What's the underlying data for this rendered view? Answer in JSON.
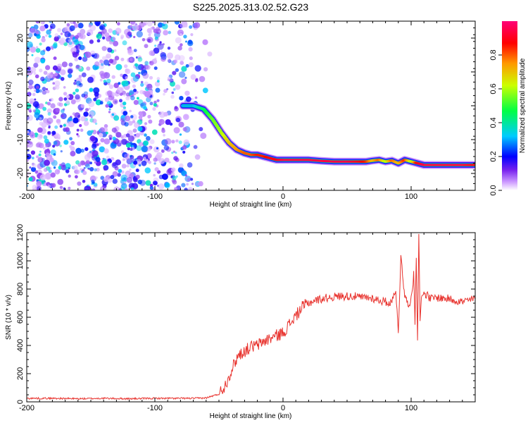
{
  "title": "S225.2025.313.02.52.G23",
  "chart_data": [
    {
      "type": "heatmap",
      "xlabel": "Height of straight line (km)",
      "ylabel": "Frequency (Hz)",
      "xlim": [
        -200,
        150
      ],
      "ylim": [
        -25,
        25
      ],
      "xticks": [
        -200,
        -100,
        0,
        100
      ],
      "yticks": [
        -20,
        -10,
        0,
        10,
        20
      ],
      "colorbar": {
        "label": "Normalized spectral amplitude",
        "range": [
          0,
          1
        ],
        "ticks": [
          0.0,
          0.2,
          0.4,
          0.6,
          0.8
        ],
        "colors": [
          "#ffffff",
          "#cc99ff",
          "#7722ee",
          "#0000ff",
          "#00ccff",
          "#00ff44",
          "#ccff00",
          "#ff9900",
          "#ff0000",
          "#ff0077"
        ]
      },
      "noise_region": {
        "x": [
          -200,
          -55
        ],
        "freq": [
          -25,
          25
        ],
        "amplitude_range": [
          0.0,
          0.35
        ]
      },
      "signal_track": {
        "x": [
          -78,
          -70,
          -62,
          -55,
          -48,
          -42,
          -36,
          -30,
          -25,
          -20,
          -15,
          -10,
          -5,
          0,
          10,
          20,
          30,
          40,
          50,
          60,
          65,
          70,
          75,
          80,
          85,
          90,
          95,
          100,
          105,
          110,
          120,
          130,
          140,
          150
        ],
        "freq": [
          0,
          0,
          -1,
          -4,
          -8,
          -11,
          -13,
          -14,
          -14.5,
          -14.5,
          -15,
          -15.5,
          -16,
          -16,
          -16,
          -16,
          -16.3,
          -16.5,
          -16.5,
          -16.5,
          -16.5,
          -16.2,
          -16,
          -16.5,
          -16.2,
          -17,
          -16,
          -16.5,
          -17,
          -17.5,
          -17.5,
          -17.5,
          -17.5,
          -17.5
        ],
        "amplitude": [
          0.3,
          0.3,
          0.45,
          0.55,
          0.6,
          0.7,
          0.75,
          0.8,
          0.8,
          0.85,
          0.85,
          0.9,
          0.9,
          0.95,
          0.95,
          0.95,
          0.95,
          0.95,
          0.95,
          0.9,
          0.85,
          0.7,
          0.8,
          0.6,
          0.8,
          0.7,
          0.85,
          0.6,
          0.9,
          0.95,
          0.95,
          0.95,
          0.95,
          0.9
        ]
      }
    },
    {
      "type": "line",
      "xlabel": "Height of straight line (km)",
      "ylabel": "SNR (10 * v/v)",
      "xlim": [
        -200,
        150
      ],
      "ylim": [
        0,
        1200
      ],
      "xticks": [
        -200,
        -100,
        0,
        100
      ],
      "yticks": [
        0,
        200,
        400,
        600,
        800,
        1000,
        1200
      ],
      "color": "#e8332e",
      "x": [
        -200,
        -180,
        -160,
        -140,
        -120,
        -100,
        -90,
        -80,
        -70,
        -60,
        -50,
        -45,
        -40,
        -35,
        -30,
        -25,
        -20,
        -15,
        -10,
        -5,
        0,
        5,
        10,
        15,
        20,
        25,
        30,
        35,
        40,
        45,
        50,
        55,
        60,
        65,
        70,
        75,
        80,
        85,
        86,
        88,
        90,
        92,
        95,
        98,
        100,
        102,
        103,
        104,
        105,
        106,
        107,
        108,
        110,
        115,
        120,
        130,
        140,
        150
      ],
      "y": [
        25,
        25,
        22,
        25,
        22,
        25,
        25,
        25,
        25,
        28,
        55,
        120,
        230,
        330,
        360,
        390,
        400,
        430,
        450,
        470,
        490,
        550,
        610,
        670,
        700,
        720,
        730,
        740,
        745,
        750,
        750,
        750,
        740,
        740,
        735,
        720,
        710,
        700,
        760,
        800,
        470,
        1050,
        740,
        700,
        720,
        900,
        560,
        1050,
        430,
        1200,
        600,
        720,
        780,
        730,
        740,
        730,
        710,
        730
      ]
    }
  ]
}
